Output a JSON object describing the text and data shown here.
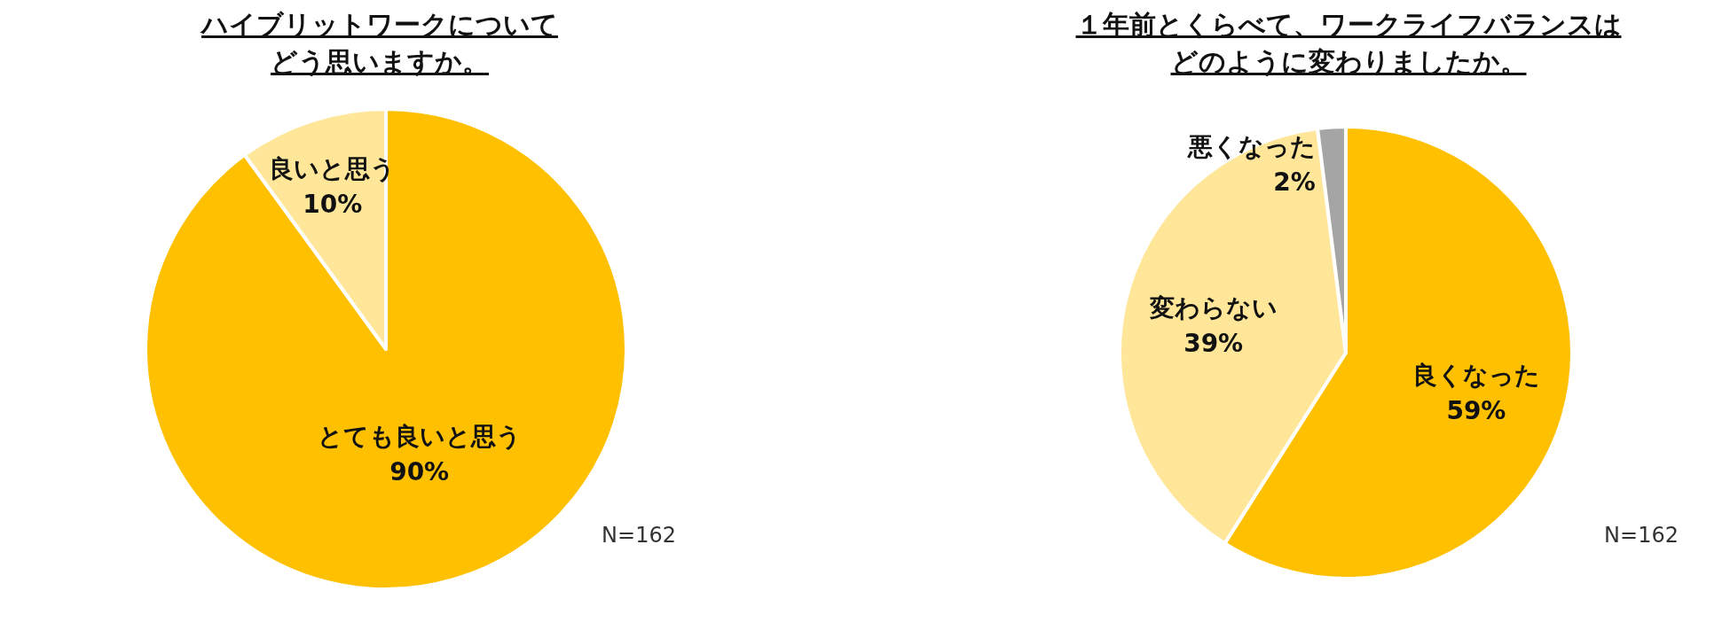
{
  "chart_data": [
    {
      "type": "pie",
      "title": "ハイブリットワークについて",
      "subtitle": "どう思いますか。",
      "categories": [
        "とても良いと思う",
        "良いと思う"
      ],
      "values": [
        90,
        10
      ],
      "colors": [
        "#ffc000",
        "#ffe699"
      ],
      "value_labels": [
        "90%",
        "10%"
      ],
      "annotations": [
        "N=162"
      ]
    },
    {
      "type": "pie",
      "title": "１年前とくらべて、ワークライフバランスは",
      "subtitle": "どのように変わりましたか。",
      "categories": [
        "良くなった",
        "変わらない",
        "悪くなった"
      ],
      "values": [
        59,
        39,
        2
      ],
      "colors": [
        "#ffc000",
        "#ffe699",
        "#a5a5a5"
      ],
      "value_labels": [
        "59%",
        "39%",
        "2%"
      ],
      "annotations": [
        "N=162"
      ]
    }
  ]
}
